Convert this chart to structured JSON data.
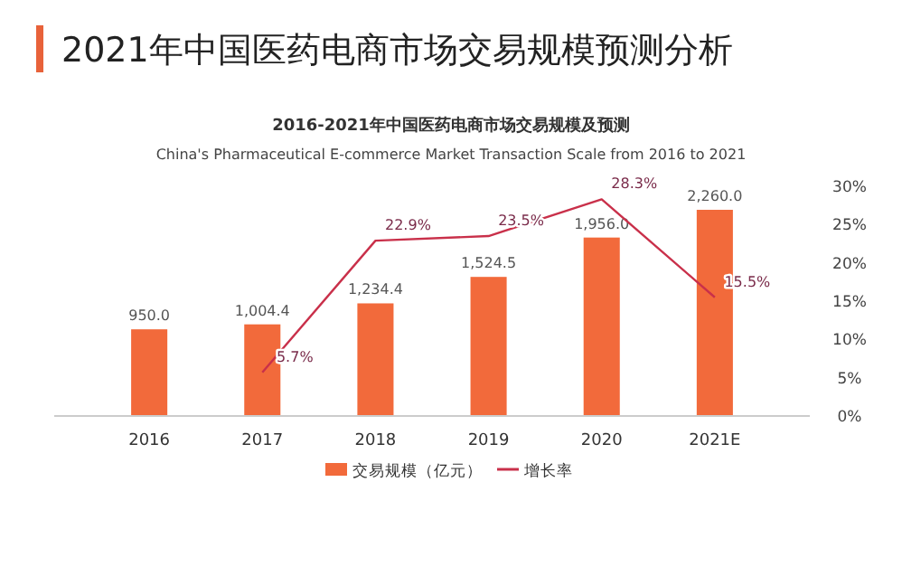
{
  "chart_data": {
    "type": "bar",
    "title": "2021年中国医药电商市场交易规模预测分析",
    "subtitle": "2016-2021年中国医药电商市场交易规模及预测",
    "annotations": [
      "China's Pharmaceutical E-commerce Market Transaction Scale from 2016 to 2021"
    ],
    "categories": [
      "2016",
      "2017",
      "2018",
      "2019",
      "2020",
      "2021E"
    ],
    "series": [
      {
        "name": "交易规模（亿元）",
        "color": "#f26a3b",
        "values": [
          950.0,
          1004.4,
          1234.4,
          1524.5,
          1956.0,
          2260.0
        ],
        "value_labels": [
          "950.0",
          "1,004.4",
          "1,234.4",
          "1,524.5",
          "1,956.0",
          "2,260.0"
        ]
      },
      {
        "name": "增长率",
        "type": "line",
        "axis": "y2",
        "color": "#c9304a",
        "values": [
          null,
          5.7,
          22.9,
          23.5,
          28.3,
          15.5
        ],
        "value_labels": [
          null,
          "5.7%",
          "22.9%",
          "23.5%",
          "28.3%",
          "15.5%"
        ]
      }
    ],
    "y2lim": [
      0,
      30
    ],
    "y2ticks": [
      {
        "value": 0,
        "label": "0%"
      },
      {
        "value": 5,
        "label": "5%"
      },
      {
        "value": 10,
        "label": "10%"
      },
      {
        "value": 15,
        "label": "15%"
      },
      {
        "value": 20,
        "label": "20%"
      },
      {
        "value": 25,
        "label": "25%"
      },
      {
        "value": 30,
        "label": "30%"
      }
    ],
    "legend": "bottom",
    "grid": false,
    "marker": "none",
    "line_style": "solid"
  }
}
